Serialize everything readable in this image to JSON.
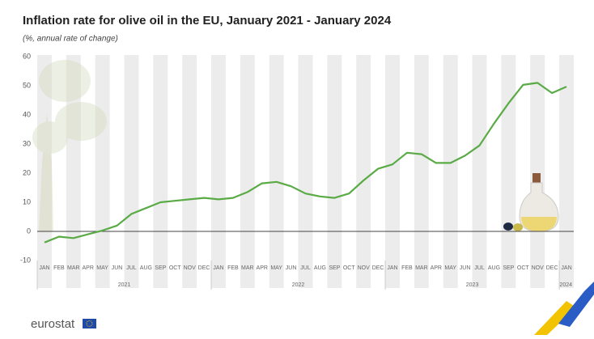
{
  "chart_data": {
    "type": "line",
    "title": "Inflation rate for olive oil in the EU, January 2021 - January 2024",
    "subtitle": "(%, annual rate of change)",
    "years": [
      {
        "label": "2021",
        "months": [
          "JAN",
          "FEB",
          "MAR",
          "APR",
          "MAY",
          "JUN",
          "JUL",
          "AUG",
          "SEP",
          "OCT",
          "NOV",
          "DEC"
        ]
      },
      {
        "label": "2022",
        "months": [
          "JAN",
          "FEB",
          "MAR",
          "APR",
          "MAY",
          "JUN",
          "JUL",
          "AUG",
          "SEP",
          "OCT",
          "NOV",
          "DEC"
        ]
      },
      {
        "label": "2023",
        "months": [
          "JAN",
          "FEB",
          "MAR",
          "APR",
          "MAY",
          "JUN",
          "JUL",
          "AUG",
          "SEP",
          "OCT",
          "NOV",
          "DEC"
        ]
      },
      {
        "label": "2024",
        "months": [
          "JAN"
        ]
      }
    ],
    "values": [
      -3.8,
      -1.8,
      -2.3,
      -1,
      0.3,
      2,
      6,
      8,
      10,
      10.5,
      11,
      11.5,
      11,
      11.5,
      13.5,
      16.5,
      17,
      15.5,
      13,
      12,
      11.5,
      13,
      17.5,
      21.5,
      23,
      27,
      26.5,
      23.5,
      23.5,
      26,
      29.5,
      37,
      44,
      50.3,
      51,
      47.5,
      49.7
    ],
    "color": "#5aab46",
    "ylim": [
      -10,
      60
    ],
    "yticks": [
      -10,
      0,
      10,
      20,
      30,
      40,
      50,
      60
    ],
    "logo": "eurostat"
  }
}
